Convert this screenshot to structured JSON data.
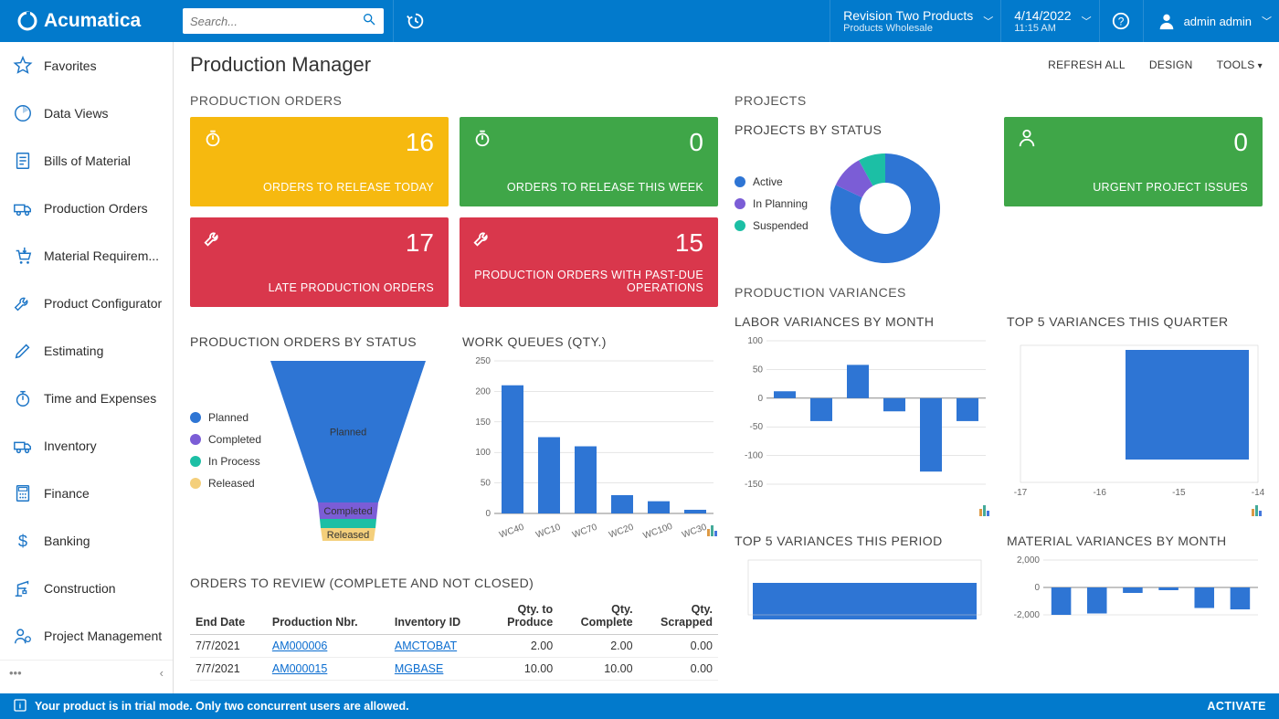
{
  "brand": "Acumatica",
  "search": {
    "placeholder": "Search..."
  },
  "topbar": {
    "company_line1": "Revision Two Products",
    "company_line2": "Products Wholesale",
    "date": "4/14/2022",
    "time": "11:15 AM",
    "user": "admin admin"
  },
  "sidebar": {
    "items": [
      {
        "label": "Favorites",
        "icon": "star"
      },
      {
        "label": "Data Views",
        "icon": "clock-pie"
      },
      {
        "label": "Bills of Material",
        "icon": "list-doc"
      },
      {
        "label": "Production Orders",
        "icon": "truck"
      },
      {
        "label": "Material Requirem...",
        "icon": "cart-in"
      },
      {
        "label": "Product Configurator",
        "icon": "wrench"
      },
      {
        "label": "Estimating",
        "icon": "pencil"
      },
      {
        "label": "Time and Expenses",
        "icon": "stopwatch"
      },
      {
        "label": "Inventory",
        "icon": "truck"
      },
      {
        "label": "Finance",
        "icon": "calc"
      },
      {
        "label": "Banking",
        "icon": "dollar"
      },
      {
        "label": "Construction",
        "icon": "crane"
      },
      {
        "label": "Project Management",
        "icon": "person-gear"
      }
    ]
  },
  "page": {
    "title": "Production Manager",
    "actions": [
      "REFRESH ALL",
      "DESIGN",
      "TOOLS"
    ]
  },
  "prod_orders": {
    "section": "PRODUCTION ORDERS",
    "kpis": [
      {
        "value": "16",
        "label": "ORDERS TO RELEASE TODAY",
        "color": "#f6b90f",
        "icon": "stopwatch"
      },
      {
        "value": "0",
        "label": "ORDERS TO RELEASE THIS WEEK",
        "color": "#3fa648",
        "icon": "stopwatch"
      },
      {
        "value": "17",
        "label": "LATE PRODUCTION ORDERS",
        "color": "#d9374c",
        "icon": "wrench"
      },
      {
        "value": "15",
        "label": "PRODUCTION ORDERS WITH PAST-DUE OPERATIONS",
        "color": "#d9374c",
        "icon": "wrench"
      }
    ]
  },
  "projects": {
    "section": "PROJECTS",
    "donut_title": "PROJECTS BY STATUS",
    "donut": {
      "legend": [
        {
          "label": "Active",
          "color": "#2e75d4"
        },
        {
          "label": "In Planning",
          "color": "#7b5dd6"
        },
        {
          "label": "Suspended",
          "color": "#1cbfa5"
        }
      ],
      "slices": [
        {
          "pct": 82,
          "color": "#2e75d4"
        },
        {
          "pct": 10,
          "color": "#7b5dd6"
        },
        {
          "pct": 8,
          "color": "#1cbfa5"
        }
      ]
    },
    "urgent": {
      "value": "0",
      "label": "URGENT PROJECT ISSUES",
      "color": "#3fa648",
      "icon": "person"
    }
  },
  "funnel": {
    "title": "PRODUCTION ORDERS BY STATUS",
    "segments": [
      {
        "label": "Planned",
        "color": "#2e75d4",
        "textInside": true
      },
      {
        "label": "Completed",
        "color": "#7b5dd6",
        "textInside": true
      },
      {
        "label": "In Process",
        "color": "#1cbfa5",
        "textInside": false
      },
      {
        "label": "Released",
        "color": "#f4cf7b",
        "textInside": true
      }
    ]
  },
  "work_queues": {
    "title": "WORK QUEUES (QTY.)",
    "ylim": [
      0,
      250
    ],
    "ytick_step": 50,
    "categories": [
      "WC40",
      "WC10",
      "WC70",
      "WC20",
      "WC100",
      "WC30"
    ],
    "values": [
      210,
      125,
      110,
      30,
      20,
      6
    ],
    "bar_color": "#2e75d4",
    "grid_color": "#cccccc"
  },
  "variances": {
    "section": "PRODUCTION VARIANCES",
    "labor": {
      "title": "LABOR VARIANCES BY MONTH",
      "ylim": [
        -150,
        100
      ],
      "ytick_step": 50,
      "values": [
        12,
        -40,
        58,
        -23,
        -128,
        -40
      ],
      "bar_color": "#2e75d4"
    },
    "top5q": {
      "title": "TOP 5 VARIANCES THIS QUARTER",
      "xticks": [
        "-17",
        "-16",
        "-15",
        "-14"
      ],
      "bar_color": "#2e75d4"
    },
    "top5p": {
      "title": "TOP 5 VARIANCES THIS PERIOD",
      "bar_color": "#2e75d4"
    },
    "material": {
      "title": "MATERIAL VARIANCES BY MONTH",
      "ylim": [
        -2000,
        2000
      ],
      "ytick_step": 2000,
      "values": [
        -2100,
        -1900,
        -400,
        -200,
        -1500,
        -1600
      ],
      "bar_color": "#2e75d4"
    }
  },
  "orders_review": {
    "title": "ORDERS TO REVIEW (COMPLETE AND NOT CLOSED)",
    "columns": [
      "End Date",
      "Production Nbr.",
      "Inventory ID",
      "Qty. to Produce",
      "Qty. Complete",
      "Qty. Scrapped"
    ],
    "rows": [
      [
        "7/7/2021",
        "AM000006",
        "AMCTOBAT",
        "2.00",
        "2.00",
        "0.00"
      ],
      [
        "7/7/2021",
        "AM000015",
        "MGBASE",
        "10.00",
        "10.00",
        "0.00"
      ]
    ]
  },
  "footer": {
    "msg": "Your product is in trial mode. Only two concurrent users are allowed.",
    "action": "ACTIVATE"
  }
}
